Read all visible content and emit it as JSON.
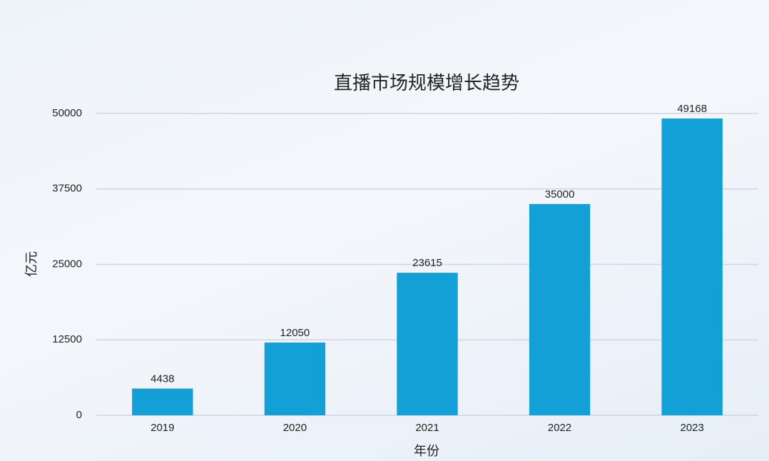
{
  "chart_data": {
    "type": "bar",
    "title": "直播市场规模增长趋势",
    "x_label": "年份",
    "y_label": "亿元",
    "categories": [
      "2019",
      "2020",
      "2021",
      "2022",
      "2023"
    ],
    "values": [
      4438,
      12050,
      23615,
      35000,
      49168
    ],
    "color": "#12a0d6",
    "ylim": [
      0,
      50000
    ],
    "yticks": [
      0,
      12500,
      25000,
      37500,
      50000
    ],
    "grid": true
  }
}
